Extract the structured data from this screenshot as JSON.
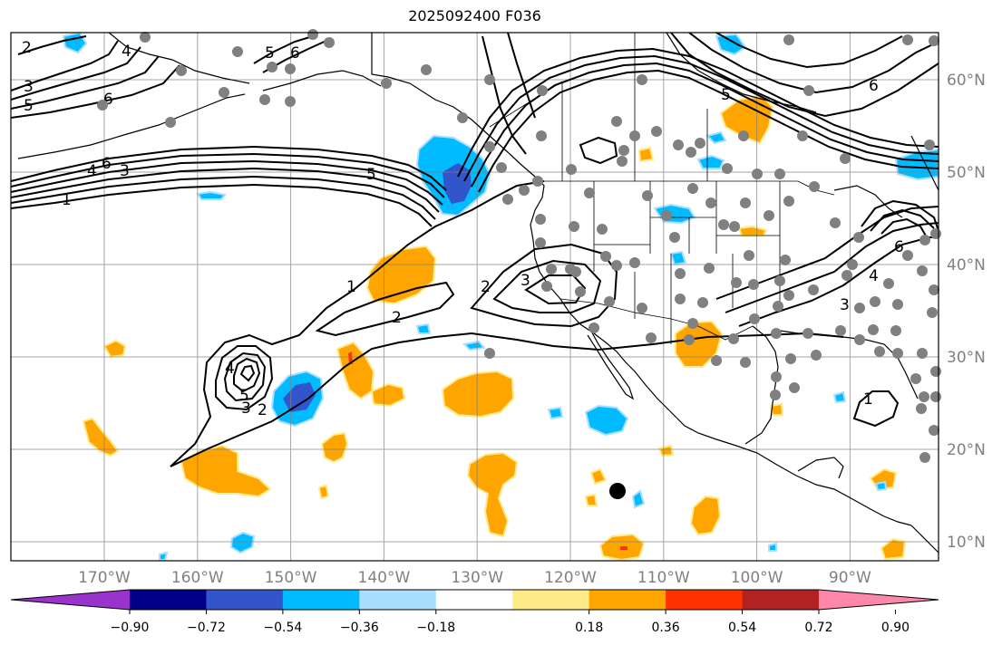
{
  "title": "2025092400 F036",
  "map": {
    "lon_labels": [
      "170°W",
      "160°W",
      "150°W",
      "140°W",
      "130°W",
      "120°W",
      "110°W",
      "100°W",
      "90°W"
    ],
    "lat_labels": [
      "60°N",
      "50°N",
      "40°N",
      "30°N",
      "20°N",
      "10°N"
    ],
    "lon_range": [
      "180°W",
      "80°W"
    ],
    "lat_range": [
      "8°N",
      "64°N"
    ],
    "grid": true,
    "contour_label_values": [
      "1",
      "2",
      "3",
      "4",
      "5",
      "6"
    ],
    "colors": {
      "coast": "#000000",
      "grid": "#808080",
      "stations": "#808080",
      "marker": "#000000"
    }
  },
  "colorbar": {
    "ticks": [
      "−0.90",
      "−0.72",
      "−0.54",
      "−0.36",
      "−0.18",
      "0.18",
      "0.36",
      "0.54",
      "0.72",
      "0.90"
    ],
    "colors": [
      "#9933cc",
      "#000088",
      "#3355cc",
      "#00bbff",
      "#aadeff",
      "#ffffff",
      "#ffea88",
      "#ffa500",
      "#ff3300",
      "#b22222",
      "#ff88aa"
    ]
  }
}
